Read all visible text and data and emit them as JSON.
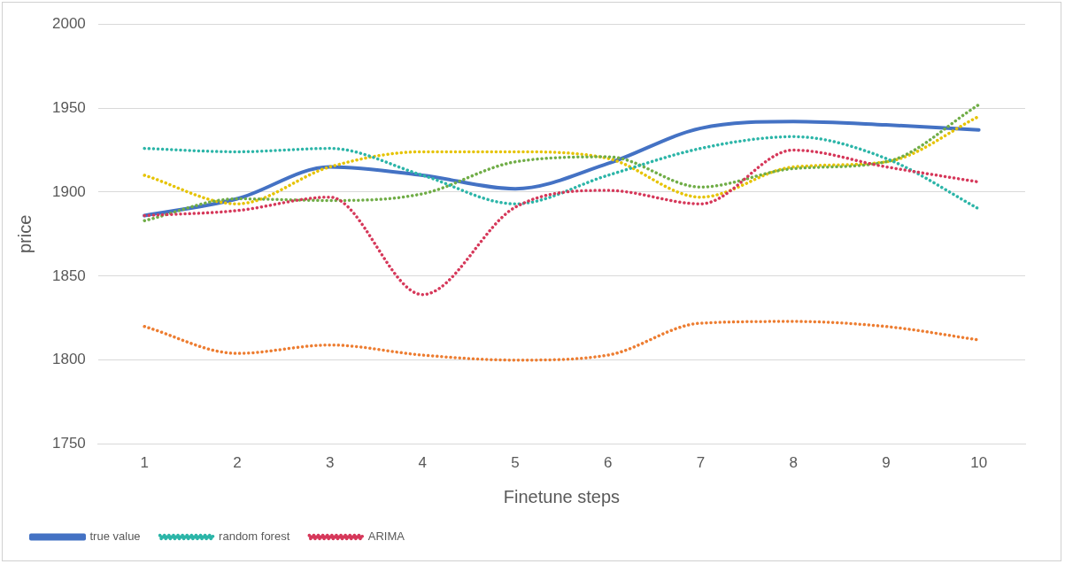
{
  "chart_data": {
    "type": "line",
    "xlabel": "Finetune steps",
    "ylabel": "price",
    "categories": [
      "1",
      "2",
      "3",
      "4",
      "5",
      "6",
      "7",
      "8",
      "9",
      "10"
    ],
    "ylim": [
      1750,
      2000
    ],
    "yticks": [
      1750,
      1800,
      1850,
      1900,
      1950,
      2000
    ],
    "grid": "y",
    "legend": "bottom",
    "marker": "none",
    "series": [
      {
        "name": "true value",
        "color": "#4472c4",
        "line_style": "solid",
        "values": [
          1886,
          1896,
          1915,
          1910,
          1902,
          1917,
          1938,
          1942,
          1940,
          1937
        ]
      },
      {
        "color": "#ed7d31",
        "line_style": "dotted",
        "values": [
          1820,
          1804,
          1809,
          1803,
          1800,
          1803,
          1822,
          1823,
          1820,
          1812
        ]
      },
      {
        "color": "#e6c300",
        "line_style": "dotted",
        "values": [
          1910,
          1893,
          1915,
          1924,
          1924,
          1920,
          1897,
          1915,
          1918,
          1945
        ]
      },
      {
        "color": "#70ad47",
        "line_style": "dotted",
        "values": [
          1883,
          1896,
          1895,
          1899,
          1918,
          1921,
          1903,
          1914,
          1918,
          1952
        ]
      },
      {
        "name": "random forest",
        "color": "#2cb5a8",
        "line_style": "dotted",
        "values": [
          1926,
          1924,
          1926,
          1910,
          1893,
          1910,
          1926,
          1933,
          1920,
          1890
        ]
      },
      {
        "name": "ARIMA",
        "color": "#d6385a",
        "line_style": "dotted",
        "values": [
          1886,
          1889,
          1897,
          1839,
          1891,
          1901,
          1893,
          1925,
          1915,
          1906
        ]
      }
    ]
  }
}
